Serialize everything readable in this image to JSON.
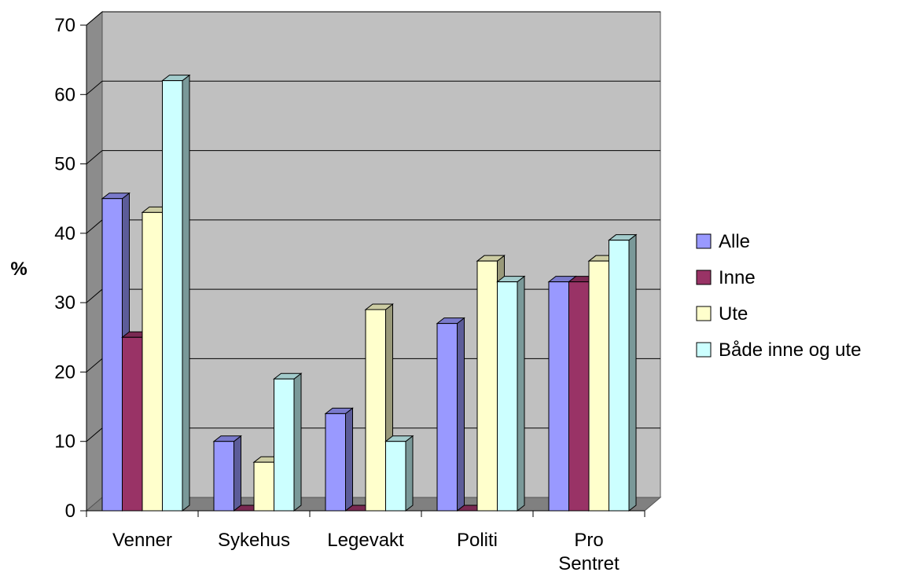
{
  "chart_data": {
    "type": "bar",
    "categories": [
      "Venner",
      "Sykehus",
      "Legevakt",
      "Politi",
      "Pro Sentret"
    ],
    "series": [
      {
        "name": "Alle",
        "values": [
          45,
          10,
          14,
          27,
          33
        ],
        "color": "#9999FF"
      },
      {
        "name": "Inne",
        "values": [
          25,
          0,
          0,
          0,
          33
        ],
        "color": "#993366"
      },
      {
        "name": "Ute",
        "values": [
          43,
          7,
          29,
          36,
          36
        ],
        "color": "#FFFFCC"
      },
      {
        "name": "Både inne og ute",
        "values": [
          62,
          19,
          10,
          33,
          39
        ],
        "color": "#CCFFFF"
      }
    ],
    "ylabel": "%",
    "ylim": [
      0,
      70
    ],
    "yticks": [
      "0",
      "10",
      "20",
      "30",
      "40",
      "50",
      "60",
      "70"
    ],
    "grid": true,
    "legend": "right",
    "style": "3d-clustered-column"
  }
}
